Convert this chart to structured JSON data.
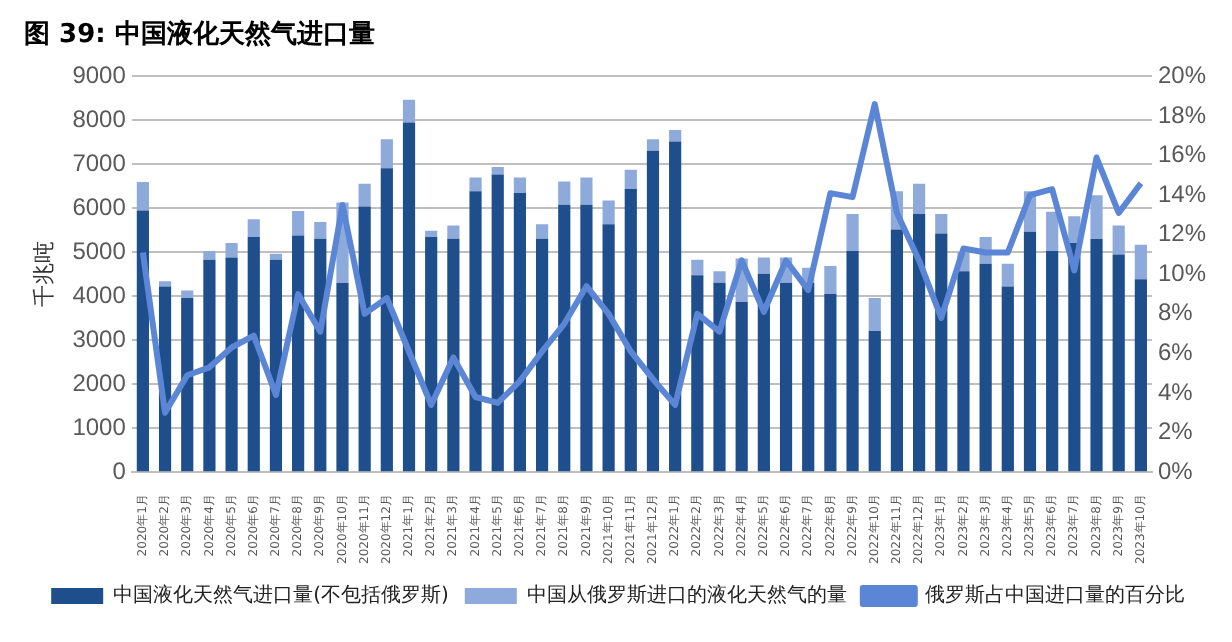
{
  "chart_data": {
    "type": "bar",
    "title": "图 39:  中国液化天然气进口量",
    "ylabel": "千兆吨",
    "categories": [
      "2020年1月",
      "2020年2月",
      "2020年3月",
      "2020年4月",
      "2020年5月",
      "2020年6月",
      "2020年7月",
      "2020年8月",
      "2020年9月",
      "2020年10月",
      "2020年11月",
      "2020年12月",
      "2021年1月",
      "2021年2月",
      "2021年3月",
      "2021年4月",
      "2021年5月",
      "2021年6月",
      "2021年7月",
      "2021年8月",
      "2021年9月",
      "2021年10月",
      "2021年11月",
      "2021年12月",
      "2022年1月",
      "2022年2月",
      "2022年3月",
      "2022年4月",
      "2022年5月",
      "2022年6月",
      "2022年7月",
      "2022年8月",
      "2022年9月",
      "2022年10月",
      "2022年11月",
      "2022年12月",
      "2023年1月",
      "2023年2月",
      "2023年3月",
      "2023年4月",
      "2023年5月",
      "2023年6月",
      "2023年7月",
      "2023年8月",
      "2023年9月",
      "2023年10月"
    ],
    "series": [
      {
        "name": "中国液化天然气进口量(不包括俄罗斯)",
        "color": "#1f4e8c",
        "values": [
          5950,
          4220,
          3960,
          4830,
          4880,
          5350,
          4830,
          5380,
          5310,
          4300,
          6040,
          6910,
          7950,
          5350,
          5310,
          6390,
          6770,
          6350,
          5310,
          6080,
          6080,
          5640,
          6440,
          7310,
          7520,
          4480,
          4310,
          3870,
          4510,
          4310,
          4310,
          4050,
          5030,
          3210,
          5520,
          5870,
          5430,
          4570,
          4740,
          4220,
          5470,
          5030,
          5210,
          5300,
          4950,
          4390
        ]
      },
      {
        "name": "中国从俄罗斯进口的液化天然气的量",
        "color": "#8eaadb",
        "values": [
          650,
          120,
          170,
          200,
          330,
          400,
          140,
          560,
          380,
          1830,
          520,
          660,
          520,
          140,
          300,
          310,
          170,
          350,
          330,
          530,
          620,
          540,
          440,
          260,
          260,
          350,
          260,
          990,
          370,
          570,
          340,
          640,
          840,
          750,
          870,
          690,
          440,
          430,
          610,
          520,
          920,
          890,
          610,
          1000,
          660,
          780
        ]
      },
      {
        "name": "俄罗斯占中国进口量的百分比",
        "type": "line",
        "axis": "y2",
        "color": "#5b86d6",
        "values": [
          11.1,
          3.0,
          4.9,
          5.3,
          6.3,
          6.9,
          3.9,
          9.0,
          7.1,
          13.5,
          8.0,
          8.8,
          6.1,
          3.4,
          5.8,
          3.8,
          3.5,
          4.6,
          6.1,
          7.5,
          9.4,
          8.0,
          6.1,
          4.7,
          3.4,
          8.0,
          7.1,
          10.7,
          8.1,
          10.7,
          9.2,
          14.1,
          13.9,
          18.6,
          13.1,
          10.7,
          7.8,
          11.3,
          11.1,
          11.1,
          14.0,
          14.3,
          10.2,
          15.9,
          13.1,
          14.6
        ]
      }
    ],
    "stacked": true,
    "ylim": [
      0,
      9000
    ],
    "yticks": [
      0,
      1000,
      2000,
      3000,
      4000,
      5000,
      6000,
      7000,
      8000,
      9000
    ],
    "y2lim": [
      0,
      20
    ],
    "y2ticks": [
      {
        "value": 0,
        "label": "0%"
      },
      {
        "value": 2,
        "label": "2%"
      },
      {
        "value": 4,
        "label": "4%"
      },
      {
        "value": 6,
        "label": "6%"
      },
      {
        "value": 8,
        "label": "8%"
      },
      {
        "value": 10,
        "label": "10%"
      },
      {
        "value": 12,
        "label": "12%"
      },
      {
        "value": 14,
        "label": "14%"
      },
      {
        "value": 16,
        "label": "16%"
      },
      {
        "value": 18,
        "label": "18%"
      },
      {
        "value": 20,
        "label": "20%"
      }
    ],
    "grid": "y",
    "legend": "bottom"
  }
}
